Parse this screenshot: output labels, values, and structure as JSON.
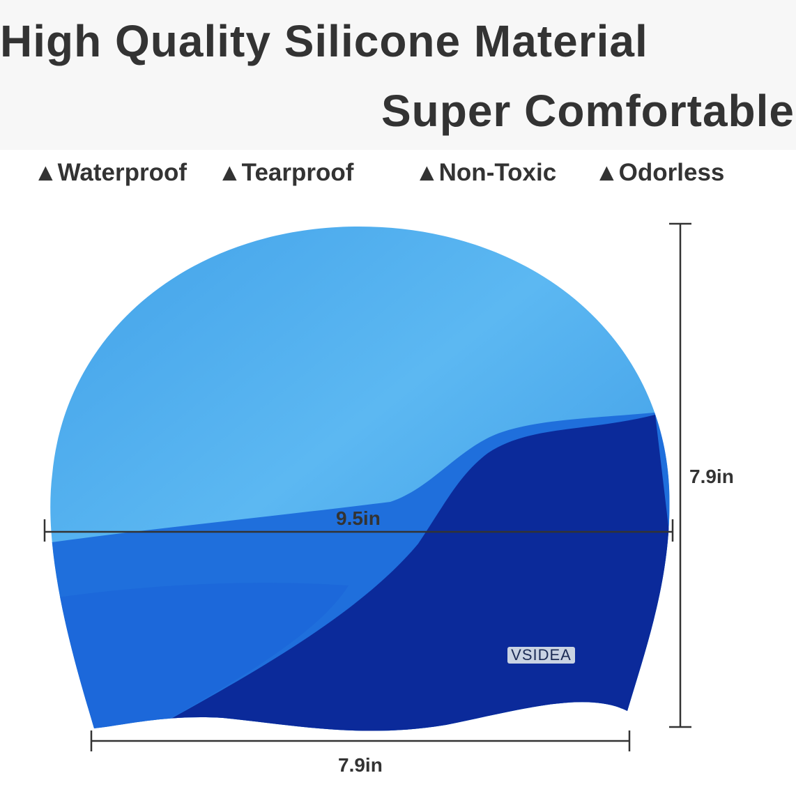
{
  "headline": "High Quality Silicone Material",
  "subheadline": "Super Comfortable",
  "features": [
    {
      "icon": "triangle-icon",
      "label": "Waterproof"
    },
    {
      "icon": "triangle-icon",
      "label": "Tearproof"
    },
    {
      "icon": "triangle-icon",
      "label": "Non-Toxic"
    },
    {
      "icon": "triangle-icon",
      "label": "Odorless"
    }
  ],
  "dimensions": {
    "width": "9.5in",
    "height": "7.9in",
    "bottom": "7.9in"
  },
  "brand_logo": "VSIDEA",
  "colors": {
    "light_blue": "#5ab4ee",
    "mid_blue": "#1f6fdc",
    "dark_blue": "#0b2a9a",
    "text": "#333333"
  }
}
